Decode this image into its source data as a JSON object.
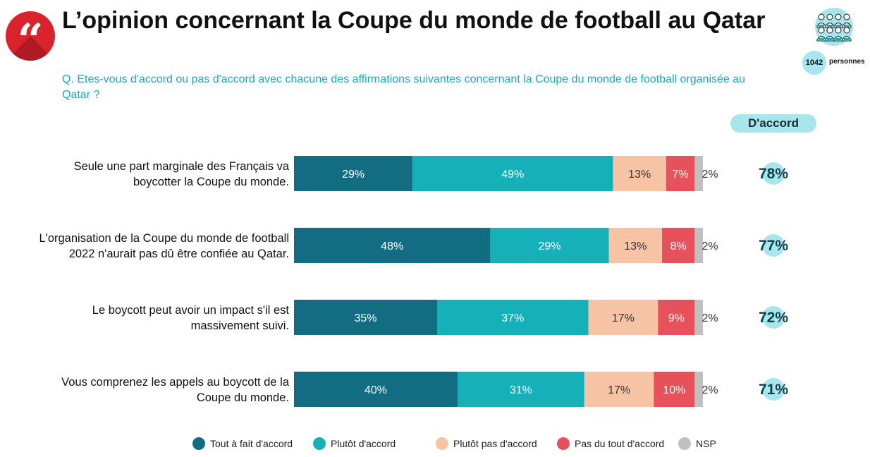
{
  "header": {
    "title": "L’opinion concernant la Coupe du monde de football au Qatar",
    "question": "Q. Etes-vous d'accord ou pas d'accord avec chacune des affirmations suivantes concernant la Coupe du monde de football organisée au Qatar ?",
    "quote_glyph": "“"
  },
  "sample": {
    "count": "1042",
    "label": "personnes",
    "icon": "people-group-icon"
  },
  "agree_header": "D'accord",
  "colors": {
    "tout_a_fait": "#136d82",
    "plutot": "#16b0b8",
    "plutot_pas": "#f6c4a4",
    "pas_du_tout": "#e6515c",
    "nsp": "#c0c0c0",
    "accent": "#1aa9b4",
    "badge": "#d9232d"
  },
  "chart_data": {
    "type": "bar",
    "orientation": "horizontal",
    "stacked": true,
    "categories": [
      [
        "Seule une part marginale des Français va",
        "boycotter la Coupe du monde."
      ],
      [
        "L'organisation de la Coupe du monde de football",
        "2022 n'aurait pas dû être confiée au Qatar."
      ],
      [
        "Le boycott peut avoir un impact s'il est",
        "massivement suivi."
      ],
      [
        "Vous comprenez les appels au boycott de la",
        "Coupe du monde."
      ]
    ],
    "series": [
      {
        "name": "Tout à fait d'accord",
        "values": [
          29,
          48,
          35,
          40
        ],
        "labels": [
          "29%",
          "48%",
          "35%",
          "40%"
        ]
      },
      {
        "name": "Plutôt d'accord",
        "values": [
          49,
          29,
          37,
          31
        ],
        "labels": [
          "49%",
          "29%",
          "37%",
          "31%"
        ]
      },
      {
        "name": "Plutôt pas d'accord",
        "values": [
          13,
          13,
          17,
          17
        ],
        "labels": [
          "13%",
          "13%",
          "17%",
          "17%"
        ]
      },
      {
        "name": "Pas du tout d'accord",
        "values": [
          7,
          8,
          9,
          10
        ],
        "labels": [
          "7%",
          "8%",
          "9%",
          "10%"
        ]
      },
      {
        "name": "NSP",
        "values": [
          2,
          2,
          2,
          2
        ],
        "labels": [
          "2%",
          "2%",
          "2%",
          "2%"
        ]
      }
    ],
    "totals": {
      "label": "D'accord",
      "values": [
        78,
        77,
        72,
        71
      ],
      "labels": [
        "78%",
        "77%",
        "72%",
        "71%"
      ]
    },
    "xlim": [
      0,
      100
    ],
    "grid": false,
    "legend_position": "bottom"
  }
}
